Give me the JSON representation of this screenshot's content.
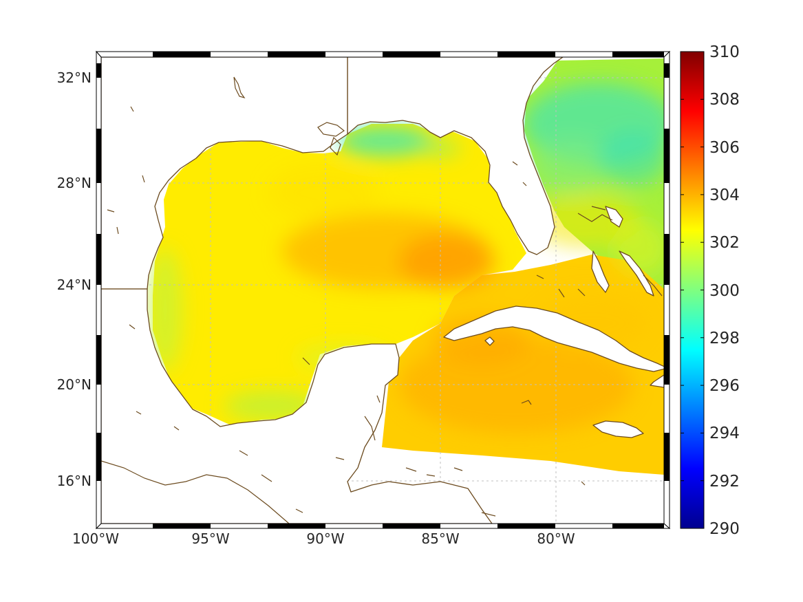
{
  "map": {
    "lon_ticks": [
      "100°W",
      "95°W",
      "90°W",
      "85°W",
      "80°W"
    ],
    "lat_ticks": [
      "32°N",
      "28°N",
      "24°N",
      "20°N",
      "16°N"
    ],
    "extent": {
      "lon_min": -100,
      "lon_max": -75,
      "lat_min": 14.2,
      "lat_max": 33
    },
    "grid": true,
    "colors": {
      "coastline": "#6b4a1e",
      "land": "#ffffff",
      "ocean_typical": "#ffea00",
      "ocean_warm": "#ff9f00",
      "ocean_cool": "#40e8a0"
    }
  },
  "colorbar": {
    "tick_labels": [
      "310",
      "308",
      "306",
      "304",
      "302",
      "300",
      "298",
      "296",
      "294",
      "292",
      "290"
    ],
    "min": 290,
    "max": 310,
    "colormap": "jet"
  }
}
